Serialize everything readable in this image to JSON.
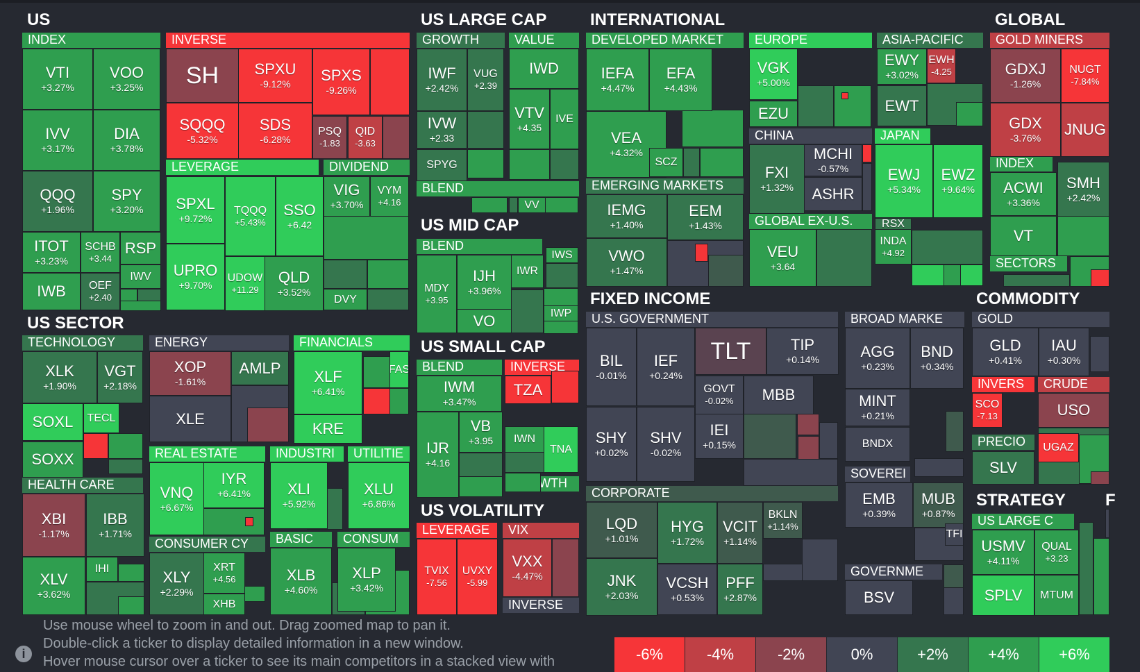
{
  "help_text": {
    "line1": "Use mouse wheel to zoom in and out. Drag zoomed map to pan it.",
    "line2": "Double-click a ticker to display detailed information in a new window.",
    "line3": "Hover mouse cursor over a ticker to see its main competitors in a stacked view with"
  },
  "info_icon_glyph": "i",
  "legend": [
    {
      "label": "-6%",
      "color": "#f63538"
    },
    {
      "label": "-4%",
      "color": "#bf4045"
    },
    {
      "label": "-2%",
      "color": "#8b444e"
    },
    {
      "label": "0%",
      "color": "#414554"
    },
    {
      "label": "+2%",
      "color": "#35764e"
    },
    {
      "label": "+4%",
      "color": "#2f9e4f"
    },
    {
      "label": "+6%",
      "color": "#30cc5a"
    }
  ],
  "sections": [
    {
      "name": "US"
    },
    {
      "name": "US LARGE CAP"
    },
    {
      "name": "INTERNATIONAL"
    },
    {
      "name": "GLOBAL"
    },
    {
      "name": "US SECTOR"
    },
    {
      "name": "US MID CAP"
    },
    {
      "name": "US SMALL CAP"
    },
    {
      "name": "US VOLATILITY"
    },
    {
      "name": "FIXED INCOME"
    },
    {
      "name": "COMMODITY"
    },
    {
      "name": "STRATEGY"
    },
    {
      "name": "F"
    }
  ],
  "industries": [
    "INDEX",
    "INVERSE",
    "LEVERAGE",
    "DIVIDEND",
    "GROWTH",
    "VALUE",
    "BLEND",
    "DEVELOPED MARKET",
    "EUROPE",
    "ASIA-PACIFIC",
    "CHINA",
    "JAPAN",
    "EMERGING MARKETS",
    "GLOBAL EX-U.S.",
    "GOLD MINERS",
    "INDEX",
    "SECTORS",
    "TECHNOLOGY",
    "ENERGY",
    "FINANCIALS",
    "REAL ESTATE",
    "INDUSTRI",
    "UTILITIE",
    "HEALTH CARE",
    "CONSUMER CY",
    "BASIC",
    "CONSUM",
    "BLEND",
    "BLEND",
    "INVERSE",
    "GROWTH",
    "LEVERAGE",
    "VIX",
    "INVERSE",
    "U.S. GOVERNMENT",
    "BROAD MARKE",
    "SOVEREI",
    "CORPORATE",
    "GOVERNME",
    "GOLD",
    "INVERS",
    "CRUDE",
    "PRECIO",
    "US LARGE C"
  ],
  "tiles": [
    {
      "t": "VTI",
      "c": "+3.27%",
      "col": "#2f9e4f"
    },
    {
      "t": "VOO",
      "c": "+3.25%",
      "col": "#2f9e4f"
    },
    {
      "t": "IVV",
      "c": "+3.17%",
      "col": "#2f9e4f"
    },
    {
      "t": "DIA",
      "c": "+3.78%",
      "col": "#2f9e4f"
    },
    {
      "t": "QQQ",
      "c": "+1.96%",
      "col": "#35764e"
    },
    {
      "t": "SPY",
      "c": "+3.20%",
      "col": "#2f9e4f"
    },
    {
      "t": "ITOT",
      "c": "+3.23%",
      "col": "#2f9e4f"
    },
    {
      "t": "SCHB",
      "c": "+3.44",
      "col": "#2f9e4f"
    },
    {
      "t": "RSP",
      "c": "",
      "col": "#2f9e4f"
    },
    {
      "t": "IWV",
      "c": "",
      "col": "#2f9e4f"
    },
    {
      "t": "IWB",
      "c": "",
      "col": "#2f9e4f"
    },
    {
      "t": "OEF",
      "c": "+2.40",
      "col": "#35764e"
    },
    {
      "t": "SH",
      "c": "",
      "col": "#8b444e"
    },
    {
      "t": "SPXU",
      "c": "-9.12%",
      "col": "#f63538"
    },
    {
      "t": "SPXS",
      "c": "-9.26%",
      "col": "#f63538"
    },
    {
      "t": "SQQQ",
      "c": "-5.32%",
      "col": "#f63538"
    },
    {
      "t": "SDS",
      "c": "-6.28%",
      "col": "#f63538"
    },
    {
      "t": "PSQ",
      "c": "-1.83",
      "col": "#8b444e"
    },
    {
      "t": "QID",
      "c": "-3.63",
      "col": "#bf4045"
    },
    {
      "t": "SPXL",
      "c": "+9.72%",
      "col": "#30cc5a"
    },
    {
      "t": "TQQQ",
      "c": "+5.43%",
      "col": "#30cc5a"
    },
    {
      "t": "SSO",
      "c": "+6.42",
      "col": "#30cc5a"
    },
    {
      "t": "UPRO",
      "c": "+9.70%",
      "col": "#30cc5a"
    },
    {
      "t": "UDOW",
      "c": "+11.29",
      "col": "#30cc5a"
    },
    {
      "t": "QLD",
      "c": "+3.52%",
      "col": "#2f9e4f"
    },
    {
      "t": "VIG",
      "c": "+3.70%",
      "col": "#2f9e4f"
    },
    {
      "t": "VYM",
      "c": "+4.16",
      "col": "#2f9e4f"
    },
    {
      "t": "DVY",
      "c": "",
      "col": "#2f9e4f"
    },
    {
      "t": "IWF",
      "c": "+2.42%",
      "col": "#35764e"
    },
    {
      "t": "VUG",
      "c": "+2.39",
      "col": "#35764e"
    },
    {
      "t": "IVW",
      "c": "+2.33",
      "col": "#35764e"
    },
    {
      "t": "SPYG",
      "c": "",
      "col": "#35764e"
    },
    {
      "t": "IWD",
      "c": "",
      "col": "#2f9e4f"
    },
    {
      "t": "VTV",
      "c": "+4.35",
      "col": "#2f9e4f"
    },
    {
      "t": "IVE",
      "c": "",
      "col": "#2f9e4f"
    },
    {
      "t": "VV",
      "c": "",
      "col": "#2f9e4f"
    },
    {
      "t": "IEFA",
      "c": "+4.47%",
      "col": "#2f9e4f"
    },
    {
      "t": "EFA",
      "c": "+4.43%",
      "col": "#2f9e4f"
    },
    {
      "t": "VEA",
      "c": "+4.32%",
      "col": "#2f9e4f"
    },
    {
      "t": "SCZ",
      "c": "",
      "col": "#2f9e4f"
    },
    {
      "t": "VGK",
      "c": "+5.00%",
      "col": "#30cc5a"
    },
    {
      "t": "EZU",
      "c": "",
      "col": "#2f9e4f"
    },
    {
      "t": "EWY",
      "c": "+3.02%",
      "col": "#2f9e4f"
    },
    {
      "t": "EWH",
      "c": "-4.25",
      "col": "#bf4045"
    },
    {
      "t": "EWT",
      "c": "",
      "col": "#35764e"
    },
    {
      "t": "FXI",
      "c": "+1.32%",
      "col": "#35764e"
    },
    {
      "t": "MCHI",
      "c": "-0.57%",
      "col": "#414554"
    },
    {
      "t": "ASHR",
      "c": "",
      "col": "#414554"
    },
    {
      "t": "EWJ",
      "c": "+5.34%",
      "col": "#30cc5a"
    },
    {
      "t": "EWZ",
      "c": "+9.64%",
      "col": "#30cc5a"
    },
    {
      "t": "IEMG",
      "c": "+1.40%",
      "col": "#35764e"
    },
    {
      "t": "EEM",
      "c": "+1.43%",
      "col": "#35764e"
    },
    {
      "t": "VWO",
      "c": "+1.47%",
      "col": "#35764e"
    },
    {
      "t": "VEU",
      "c": "+3.64",
      "col": "#2f9e4f"
    },
    {
      "t": "INDA",
      "c": "+4.92",
      "col": "#2f9e4f"
    },
    {
      "t": "RSX",
      "c": "",
      "col": "#35764e"
    },
    {
      "t": "GDXJ",
      "c": "-1.26%",
      "col": "#8b444e"
    },
    {
      "t": "NUGT",
      "c": "-7.84%",
      "col": "#f63538"
    },
    {
      "t": "GDX",
      "c": "-3.76%",
      "col": "#bf4045"
    },
    {
      "t": "JNUG",
      "c": "",
      "col": "#bf4045"
    },
    {
      "t": "ACWI",
      "c": "+3.36%",
      "col": "#2f9e4f"
    },
    {
      "t": "SMH",
      "c": "+2.42%",
      "col": "#35764e"
    },
    {
      "t": "VT",
      "c": "",
      "col": "#2f9e4f"
    },
    {
      "t": "XLK",
      "c": "+1.90%",
      "col": "#35764e"
    },
    {
      "t": "VGT",
      "c": "+2.18%",
      "col": "#35764e"
    },
    {
      "t": "SOXL",
      "c": "",
      "col": "#30cc5a"
    },
    {
      "t": "TECL",
      "c": "",
      "col": "#30cc5a"
    },
    {
      "t": "SOXX",
      "c": "",
      "col": "#2f9e4f"
    },
    {
      "t": "XOP",
      "c": "-1.61%",
      "col": "#8b444e"
    },
    {
      "t": "AMLP",
      "c": "",
      "col": "#35764e"
    },
    {
      "t": "XLE",
      "c": "",
      "col": "#414554"
    },
    {
      "t": "XLF",
      "c": "+6.41%",
      "col": "#30cc5a"
    },
    {
      "t": "FAS",
      "c": "",
      "col": "#30cc5a"
    },
    {
      "t": "KRE",
      "c": "",
      "col": "#30cc5a"
    },
    {
      "t": "VNQ",
      "c": "+6.67%",
      "col": "#30cc5a"
    },
    {
      "t": "IYR",
      "c": "+6.41%",
      "col": "#30cc5a"
    },
    {
      "t": "XLI",
      "c": "+5.92%",
      "col": "#30cc5a"
    },
    {
      "t": "XLU",
      "c": "+6.86%",
      "col": "#30cc5a"
    },
    {
      "t": "XBI",
      "c": "-1.17%",
      "col": "#8b444e"
    },
    {
      "t": "IBB",
      "c": "+1.71%",
      "col": "#35764e"
    },
    {
      "t": "XLV",
      "c": "+3.62%",
      "col": "#2f9e4f"
    },
    {
      "t": "IHI",
      "c": "",
      "col": "#2f9e4f"
    },
    {
      "t": "XLY",
      "c": "+2.29%",
      "col": "#35764e"
    },
    {
      "t": "XRT",
      "c": "+4.56",
      "col": "#2f9e4f"
    },
    {
      "t": "XHB",
      "c": "",
      "col": "#2f9e4f"
    },
    {
      "t": "XLB",
      "c": "+4.60%",
      "col": "#2f9e4f"
    },
    {
      "t": "XLP",
      "c": "+3.42%",
      "col": "#2f9e4f"
    },
    {
      "t": "MDY",
      "c": "+3.95",
      "col": "#2f9e4f"
    },
    {
      "t": "IJH",
      "c": "+3.96%",
      "col": "#2f9e4f"
    },
    {
      "t": "IWR",
      "c": "",
      "col": "#2f9e4f"
    },
    {
      "t": "VO",
      "c": "",
      "col": "#2f9e4f"
    },
    {
      "t": "IWS",
      "c": "",
      "col": "#2f9e4f"
    },
    {
      "t": "IWP",
      "c": "",
      "col": "#2f9e4f"
    },
    {
      "t": "IWM",
      "c": "+3.47%",
      "col": "#2f9e4f"
    },
    {
      "t": "VB",
      "c": "+3.95",
      "col": "#2f9e4f"
    },
    {
      "t": "IJR",
      "c": "+4.16",
      "col": "#2f9e4f"
    },
    {
      "t": "TZA",
      "c": "",
      "col": "#f63538"
    },
    {
      "t": "IWN",
      "c": "",
      "col": "#2f9e4f"
    },
    {
      "t": "TNA",
      "c": "",
      "col": "#30cc5a"
    },
    {
      "t": "TVIX",
      "c": "-7.56",
      "col": "#f63538"
    },
    {
      "t": "UVXY",
      "c": "-5.99",
      "col": "#f63538"
    },
    {
      "t": "VXX",
      "c": "-4.47%",
      "col": "#bf4045"
    },
    {
      "t": "BIL",
      "c": "-0.01%",
      "col": "#414554"
    },
    {
      "t": "IEF",
      "c": "+0.24%",
      "col": "#414554"
    },
    {
      "t": "TLT",
      "c": "",
      "col": "#5a4350"
    },
    {
      "t": "TIP",
      "c": "+0.14%",
      "col": "#414554"
    },
    {
      "t": "GOVT",
      "c": "-0.02%",
      "col": "#414554"
    },
    {
      "t": "MBB",
      "c": "",
      "col": "#414554"
    },
    {
      "t": "SHY",
      "c": "+0.02%",
      "col": "#414554"
    },
    {
      "t": "SHV",
      "c": "-0.02%",
      "col": "#414554"
    },
    {
      "t": "IEI",
      "c": "+0.15%",
      "col": "#414554"
    },
    {
      "t": "AGG",
      "c": "+0.23%",
      "col": "#414554"
    },
    {
      "t": "BND",
      "c": "+0.34%",
      "col": "#414554"
    },
    {
      "t": "MINT",
      "c": "+0.21%",
      "col": "#414554"
    },
    {
      "t": "BNDX",
      "c": "",
      "col": "#414554"
    },
    {
      "t": "EMB",
      "c": "+0.39%",
      "col": "#414554"
    },
    {
      "t": "MUB",
      "c": "+0.87%",
      "col": "#3f5a4d"
    },
    {
      "t": "TFI",
      "c": "",
      "col": "#414554"
    },
    {
      "t": "BSV",
      "c": "",
      "col": "#414554"
    },
    {
      "t": "LQD",
      "c": "+1.01%",
      "col": "#3f5a4d"
    },
    {
      "t": "HYG",
      "c": "+1.72%",
      "col": "#35764e"
    },
    {
      "t": "VCIT",
      "c": "+1.14%",
      "col": "#3f5a4d"
    },
    {
      "t": "BKLN",
      "c": "+1.14%",
      "col": "#3f5a4d"
    },
    {
      "t": "JNK",
      "c": "+2.03%",
      "col": "#35764e"
    },
    {
      "t": "VCSH",
      "c": "+0.53%",
      "col": "#414554"
    },
    {
      "t": "PFF",
      "c": "+2.87%",
      "col": "#35764e"
    },
    {
      "t": "GLD",
      "c": "+0.41%",
      "col": "#414554"
    },
    {
      "t": "IAU",
      "c": "+0.30%",
      "col": "#414554"
    },
    {
      "t": "SCO",
      "c": "-7.13",
      "col": "#f63538"
    },
    {
      "t": "USO",
      "c": "",
      "col": "#8b444e"
    },
    {
      "t": "UGAZ",
      "c": "",
      "col": "#f63538"
    },
    {
      "t": "SLV",
      "c": "",
      "col": "#35764e"
    },
    {
      "t": "USMV",
      "c": "+4.11%",
      "col": "#2f9e4f"
    },
    {
      "t": "QUAL",
      "c": "+3.23",
      "col": "#2f9e4f"
    },
    {
      "t": "MTUM",
      "c": "",
      "col": "#2f9e4f"
    },
    {
      "t": "SPLV",
      "c": "",
      "col": "#30cc5a"
    }
  ]
}
